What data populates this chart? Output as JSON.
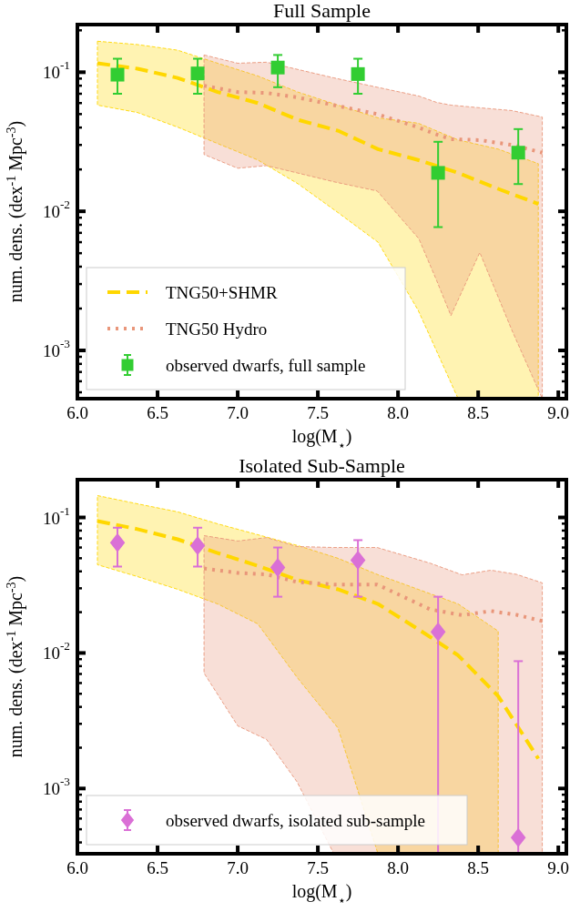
{
  "chart_data": [
    {
      "type": "line",
      "title": "Full Sample",
      "xlabel": "log(M$_{⋆}$)",
      "ylabel": "num. dens. (dex$^{-1}$ Mpc$^{-3}$)",
      "log": "y",
      "legend": "bottom left",
      "xlim": [
        6.0,
        9.05
      ],
      "xticks": [
        {
          "value": 6,
          "label": "6.0"
        },
        {
          "value": 6.5,
          "label": "6.5"
        },
        {
          "value": 7,
          "label": "7.0"
        },
        {
          "value": 7.5,
          "label": "7.5"
        },
        {
          "value": 8,
          "label": "8.0"
        },
        {
          "value": 8.5,
          "label": "8.5"
        },
        {
          "value": 9,
          "label": "9.0"
        }
      ],
      "ylim": [
        0.00045,
        0.22
      ],
      "yticks": [
        {
          "value": 0.0005,
          "label": null
        },
        {
          "value": 0.0006,
          "label": null
        },
        {
          "value": 0.0007,
          "label": null
        },
        {
          "value": 0.0008,
          "label": null
        },
        {
          "value": 0.0009,
          "label": null
        },
        {
          "value": 0.001,
          "label": "10$^{-3}$"
        },
        {
          "value": 0.002,
          "label": null
        },
        {
          "value": 0.003,
          "label": null
        },
        {
          "value": 0.004,
          "label": null
        },
        {
          "value": 0.005,
          "label": null
        },
        {
          "value": 0.006,
          "label": null
        },
        {
          "value": 0.007,
          "label": null
        },
        {
          "value": 0.008,
          "label": null
        },
        {
          "value": 0.009,
          "label": null
        },
        {
          "value": 0.01,
          "label": "10$^{-2}$"
        },
        {
          "value": 0.02,
          "label": null
        },
        {
          "value": 0.03,
          "label": null
        },
        {
          "value": 0.04,
          "label": null
        },
        {
          "value": 0.05,
          "label": null
        },
        {
          "value": 0.06,
          "label": null
        },
        {
          "value": 0.07,
          "label": null
        },
        {
          "value": 0.08,
          "label": null
        },
        {
          "value": 0.09,
          "label": null
        },
        {
          "value": 0.1,
          "label": "10$^{-1}$"
        },
        {
          "value": 0.2,
          "label": null
        }
      ],
      "x": [
        6.125,
        6.375,
        6.625,
        6.875,
        7.125,
        7.375,
        7.625,
        7.875,
        8.125,
        8.375,
        8.625,
        8.875
      ],
      "series": [
        {
          "name": "TNG50+SHMR",
          "type": "line",
          "color": "#ffd700",
          "line_style": "dashed",
          "values": [
            0.116,
            0.106,
            0.091,
            0.072,
            0.06,
            0.0455,
            0.038,
            0.028,
            0.0234,
            0.0189,
            0.0145,
            0.0113
          ],
          "upper": [
            0.167,
            0.158,
            0.144,
            0.116,
            0.094,
            0.072,
            0.058,
            0.047,
            0.043,
            0.0326,
            0.028,
            0.022
          ],
          "lower": [
            0.058,
            0.0513,
            0.0403,
            0.0307,
            0.0234,
            0.0158,
            0.0098,
            0.006,
            0.00195,
            0.00045,
            0.00045,
            0.00045
          ]
        },
        {
          "name": "TNG50 Hydro",
          "type": "line",
          "color": "#e9967a",
          "line_style": "dotted",
          "x": [
            6.79,
            7.0,
            7.18,
            7.37,
            7.6,
            7.87,
            8.13,
            8.24,
            8.33,
            8.51,
            8.71,
            8.9
          ],
          "values": [
            0.08,
            0.072,
            0.071,
            0.066,
            0.058,
            0.05,
            0.04,
            0.0357,
            0.033,
            0.0325,
            0.03,
            0.0264
          ],
          "upper": [
            0.133,
            0.116,
            0.118,
            0.105,
            0.091,
            0.078,
            0.0674,
            0.0607,
            0.058,
            0.0555,
            0.053,
            0.0476
          ],
          "lower": [
            0.0256,
            0.0204,
            0.0213,
            0.0189,
            0.0163,
            0.014,
            0.00635,
            0.0032,
            0.00178,
            0.00506,
            0.0014,
            0.00045
          ]
        },
        {
          "name": "observed dwarfs, full sample",
          "type": "scatter",
          "color": "#32cd32",
          "marker": "square",
          "x": [
            6.25,
            6.75,
            7.25,
            7.75,
            8.25,
            8.75
          ],
          "values": [
            0.096,
            0.098,
            0.108,
            0.097,
            0.0189,
            0.0264
          ],
          "errors": [
            [
              0.07,
              0.125
            ],
            [
              0.07,
              0.125
            ],
            [
              0.078,
              0.133
            ],
            [
              0.07,
              0.125
            ],
            [
              0.0077,
              0.0316
            ],
            [
              0.0157,
              0.039
            ]
          ]
        }
      ]
    },
    {
      "type": "line",
      "title": "Isolated Sub-Sample",
      "xlabel": "log(M$_{⋆}$)",
      "ylabel": "num. dens. (dex$^{-1}$ Mpc$^{-3}$)",
      "log": "y",
      "legend": "bottom left",
      "xlim": [
        6.0,
        9.05
      ],
      "xticks": [
        {
          "value": 6,
          "label": "6.0"
        },
        {
          "value": 6.5,
          "label": "6.5"
        },
        {
          "value": 7,
          "label": "7.0"
        },
        {
          "value": 7.5,
          "label": "7.5"
        },
        {
          "value": 8,
          "label": "8.0"
        },
        {
          "value": 8.5,
          "label": "8.5"
        },
        {
          "value": 9,
          "label": "9.0"
        }
      ],
      "ylim": [
        0.00033,
        0.19
      ],
      "yticks": [
        {
          "value": 0.0004,
          "label": null
        },
        {
          "value": 0.0005,
          "label": null
        },
        {
          "value": 0.0006,
          "label": null
        },
        {
          "value": 0.0007,
          "label": null
        },
        {
          "value": 0.0008,
          "label": null
        },
        {
          "value": 0.0009,
          "label": null
        },
        {
          "value": 0.001,
          "label": "10$^{-3}$"
        },
        {
          "value": 0.002,
          "label": null
        },
        {
          "value": 0.003,
          "label": null
        },
        {
          "value": 0.004,
          "label": null
        },
        {
          "value": 0.005,
          "label": null
        },
        {
          "value": 0.006,
          "label": null
        },
        {
          "value": 0.007,
          "label": null
        },
        {
          "value": 0.008,
          "label": null
        },
        {
          "value": 0.009,
          "label": null
        },
        {
          "value": 0.01,
          "label": "10$^{-2}$"
        },
        {
          "value": 0.02,
          "label": null
        },
        {
          "value": 0.03,
          "label": null
        },
        {
          "value": 0.04,
          "label": null
        },
        {
          "value": 0.05,
          "label": null
        },
        {
          "value": 0.06,
          "label": null
        },
        {
          "value": 0.07,
          "label": null
        },
        {
          "value": 0.08,
          "label": null
        },
        {
          "value": 0.09,
          "label": null
        },
        {
          "value": 0.1,
          "label": "10$^{-1}$"
        }
      ],
      "x": [
        6.125,
        6.375,
        6.625,
        6.875,
        7.125,
        7.375,
        7.625,
        7.875,
        8.125,
        8.375,
        8.625,
        8.875
      ],
      "series": [
        {
          "type": "line",
          "color": "#ffd700",
          "line_style": "dashed",
          "values": [
            0.094,
            0.082,
            0.069,
            0.0547,
            0.044,
            0.0345,
            0.0295,
            0.023,
            0.015,
            0.0096,
            0.0048,
            0.00166
          ],
          "upper": [
            0.145,
            0.126,
            0.11,
            0.0897,
            0.0746,
            0.062,
            0.05,
            0.0378,
            0.0295,
            0.023,
            0.0145,
            null
          ],
          "lower": [
            0.0448,
            0.0366,
            0.0295,
            0.023,
            0.0164,
            0.0065,
            0.0028,
            0.00033,
            0.00033,
            0.00033,
            0.00033,
            null
          ]
        },
        {
          "type": "line",
          "color": "#e9967a",
          "line_style": "dotted",
          "x": [
            6.79,
            7.0,
            7.18,
            7.37,
            7.6,
            7.87,
            8.2,
            8.4,
            8.58,
            8.74,
            8.9
          ],
          "values": [
            0.042,
            0.039,
            0.038,
            0.0334,
            0.032,
            0.032,
            0.021,
            0.019,
            0.0204,
            0.0191,
            0.0172
          ],
          "upper": [
            0.0734,
            0.067,
            0.071,
            0.061,
            0.06,
            0.06,
            0.046,
            0.0377,
            0.0408,
            0.038,
            0.0329
          ],
          "lower": [
            0.0071,
            0.0029,
            0.0023,
            0.00112,
            0.00033,
            0.00033,
            0.00033,
            0.00033,
            0.00033,
            0.00033,
            0.00033
          ]
        },
        {
          "name": "observed dwarfs, isolated sub-sample",
          "type": "scatter",
          "color": "#da70d6",
          "marker": "diamond",
          "x": [
            6.25,
            6.75,
            7.25,
            7.75,
            8.25,
            8.75
          ],
          "values": [
            0.065,
            0.062,
            0.0428,
            0.0484,
            0.0143,
            0.000435
          ],
          "errors": [
            [
              0.0434,
              0.084
            ],
            [
              0.0434,
              0.084
            ],
            [
              0.026,
              0.06
            ],
            [
              0.026,
              0.068
            ],
            [
              0.00033,
              0.026
            ],
            [
              0.00033,
              0.0087
            ]
          ]
        }
      ]
    }
  ]
}
